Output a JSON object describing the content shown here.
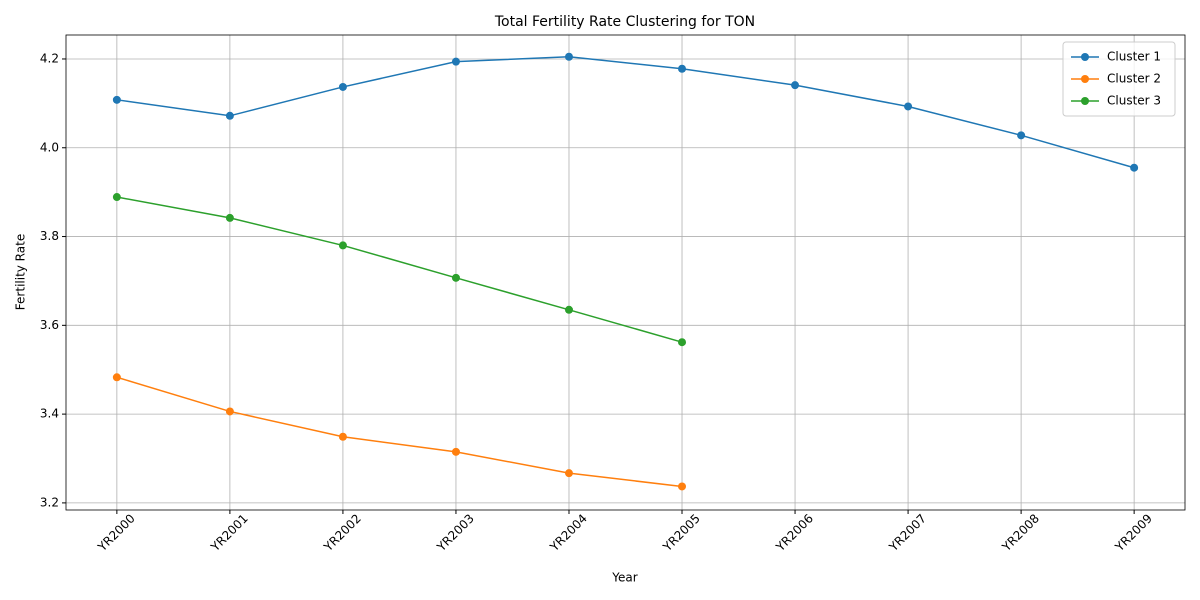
{
  "chart_data": {
    "type": "line",
    "title": "Total Fertility Rate Clustering for TON",
    "x_label": "Year",
    "y_label": "Fertility Rate",
    "categories": [
      "YR2000",
      "YR2001",
      "YR2002",
      "YR2003",
      "YR2004",
      "YR2005",
      "YR2006",
      "YR2007",
      "YR2008",
      "YR2009"
    ],
    "series": [
      {
        "name": "Cluster 1",
        "color": "#1f77b4",
        "values": [
          4.108,
          4.072,
          4.137,
          4.194,
          4.205,
          4.178,
          4.141,
          4.093,
          4.028,
          3.955
        ]
      },
      {
        "name": "Cluster 2",
        "color": "#ff7f0e",
        "values": [
          3.483,
          3.406,
          3.349,
          3.315,
          3.267,
          3.237,
          null,
          null,
          null,
          null
        ]
      },
      {
        "name": "Cluster 3",
        "color": "#2ca02c",
        "values": [
          3.889,
          3.842,
          3.78,
          3.707,
          3.635,
          3.562,
          null,
          null,
          null,
          null
        ]
      }
    ],
    "ylim": [
      3.184,
      4.254
    ],
    "yticks": [
      3.2,
      3.4,
      3.6,
      3.8,
      {
        "value": 4,
        "label": "4.0"
      },
      4.2
    ],
    "grid": true,
    "legend": "upper right"
  }
}
